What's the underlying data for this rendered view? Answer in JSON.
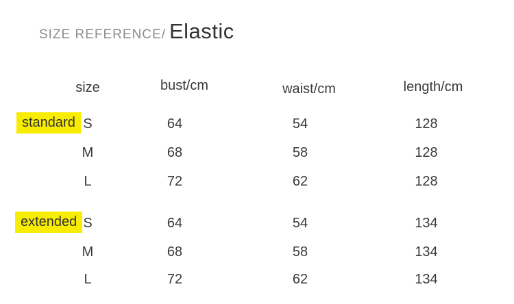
{
  "title": {
    "prefix": "SIZE REFERENCE/",
    "product": "Elastic"
  },
  "colors": {
    "highlight": "#f8ec00",
    "title_muted": "#8b8b8b",
    "text": "#3a3a3a"
  },
  "chart_data": {
    "type": "table",
    "title": "SIZE REFERENCE/ Elastic",
    "columns": [
      "size",
      "bust/cm",
      "waist/cm",
      "length/cm"
    ],
    "groups": [
      {
        "label": "standard",
        "rows": [
          {
            "size": "S",
            "bust": "64",
            "waist": "54",
            "length": "128"
          },
          {
            "size": "M",
            "bust": "68",
            "waist": "58",
            "length": "128"
          },
          {
            "size": "L",
            "bust": "72",
            "waist": "62",
            "length": "128"
          }
        ]
      },
      {
        "label": "extended",
        "rows": [
          {
            "size": "S",
            "bust": "64",
            "waist": "54",
            "length": "134"
          },
          {
            "size": "M",
            "bust": "68",
            "waist": "58",
            "length": "134"
          },
          {
            "size": "L",
            "bust": "72",
            "waist": "62",
            "length": "134"
          }
        ]
      }
    ]
  }
}
